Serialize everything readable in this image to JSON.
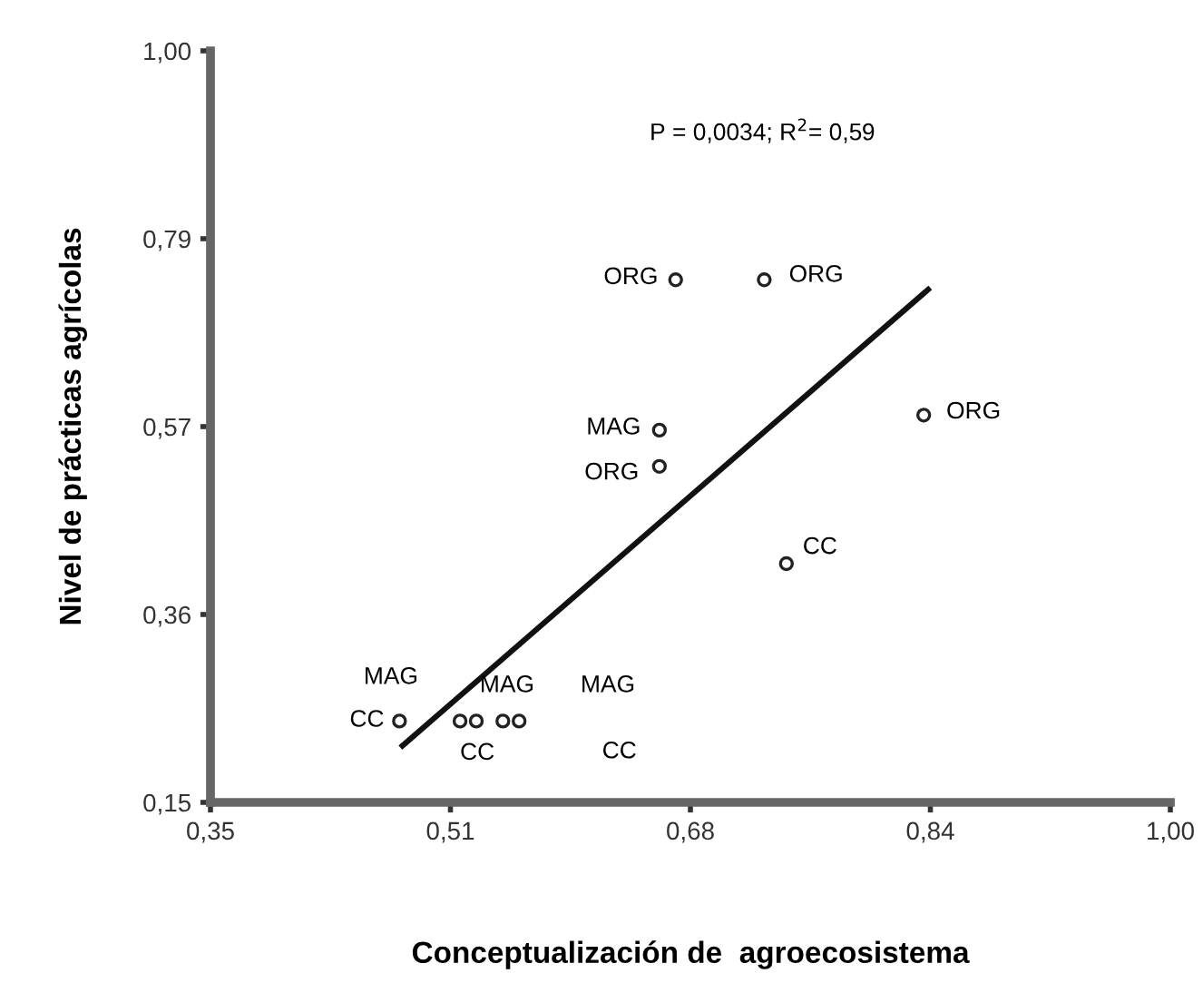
{
  "chart_data": {
    "type": "scatter",
    "xlabel": "Conceptualización de  agroecosistema",
    "ylabel": "Nivel de prácticas agrícolas",
    "xlim": [
      0.35,
      1.0
    ],
    "ylim": [
      0.15,
      1.0
    ],
    "xticks": [
      {
        "value": 0.35,
        "label": "0,35"
      },
      {
        "value": 0.5125,
        "label": "0,51"
      },
      {
        "value": 0.675,
        "label": "0,68"
      },
      {
        "value": 0.8375,
        "label": "0,84"
      },
      {
        "value": 1.0,
        "label": "1,00"
      }
    ],
    "yticks": [
      {
        "value": 0.15,
        "label": "0,15"
      },
      {
        "value": 0.3625,
        "label": "0,36"
      },
      {
        "value": 0.575,
        "label": "0,57"
      },
      {
        "value": 0.7875,
        "label": "0,79"
      },
      {
        "value": 1.0,
        "label": "1,00"
      }
    ],
    "grid": false,
    "legend": false,
    "series": [
      {
        "marker": "circle",
        "color": "#222222",
        "x": [
          0.665,
          0.725,
          0.833,
          0.654,
          0.654,
          0.74,
          0.478,
          0.519,
          0.53,
          0.548,
          0.559
        ],
        "values": [
          0.741,
          0.741,
          0.588,
          0.571,
          0.53,
          0.42,
          0.242,
          0.242,
          0.242,
          0.242,
          0.242
        ]
      },
      {
        "type": "line",
        "color": "#111111",
        "x": [
          0.48,
          0.836
        ],
        "values": [
          0.214,
          0.73
        ]
      }
    ],
    "annotations": [
      "P = 0,0034; R$^{2}$= 0,59",
      "ORG",
      "ORG",
      "ORG",
      "MAG",
      "ORG",
      "CC",
      "MAG",
      "CC",
      "MAG",
      "MAG",
      "CC",
      "CC"
    ]
  }
}
